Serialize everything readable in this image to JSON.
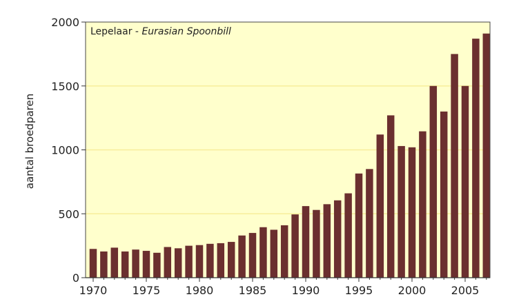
{
  "chart_data": {
    "type": "bar",
    "title_main": "Lepelaar",
    "title_separator": " - ",
    "title_italic": "Eurasian Spoonbill",
    "xlabel": "",
    "ylabel": "aantal broedparen",
    "ylim": [
      0,
      2000
    ],
    "yticks": [
      "0",
      "500",
      "1000",
      "1500",
      "2000"
    ],
    "xticks": [
      "1970",
      "1975",
      "1980",
      "1985",
      "1990",
      "1995",
      "2000",
      "2005"
    ],
    "grid": "horizontal",
    "colors": {
      "bar": "#6b2f2f",
      "background": "#ffffcc",
      "grid": "#f7ee9a",
      "frame": "#444444"
    },
    "categories": [
      "1970",
      "1971",
      "1972",
      "1973",
      "1974",
      "1975",
      "1976",
      "1977",
      "1978",
      "1979",
      "1980",
      "1981",
      "1982",
      "1983",
      "1984",
      "1985",
      "1986",
      "1987",
      "1988",
      "1989",
      "1990",
      "1991",
      "1992",
      "1993",
      "1994",
      "1995",
      "1996",
      "1997",
      "1998",
      "1999",
      "2000",
      "2001",
      "2002",
      "2003",
      "2004",
      "2005",
      "2006",
      "2007"
    ],
    "values": [
      225,
      205,
      235,
      205,
      220,
      210,
      195,
      240,
      230,
      250,
      255,
      265,
      270,
      280,
      330,
      350,
      395,
      375,
      410,
      495,
      560,
      530,
      575,
      605,
      660,
      815,
      850,
      1120,
      1270,
      1030,
      1020,
      1145,
      1500,
      1300,
      1750,
      1500,
      1870,
      1910
    ]
  }
}
